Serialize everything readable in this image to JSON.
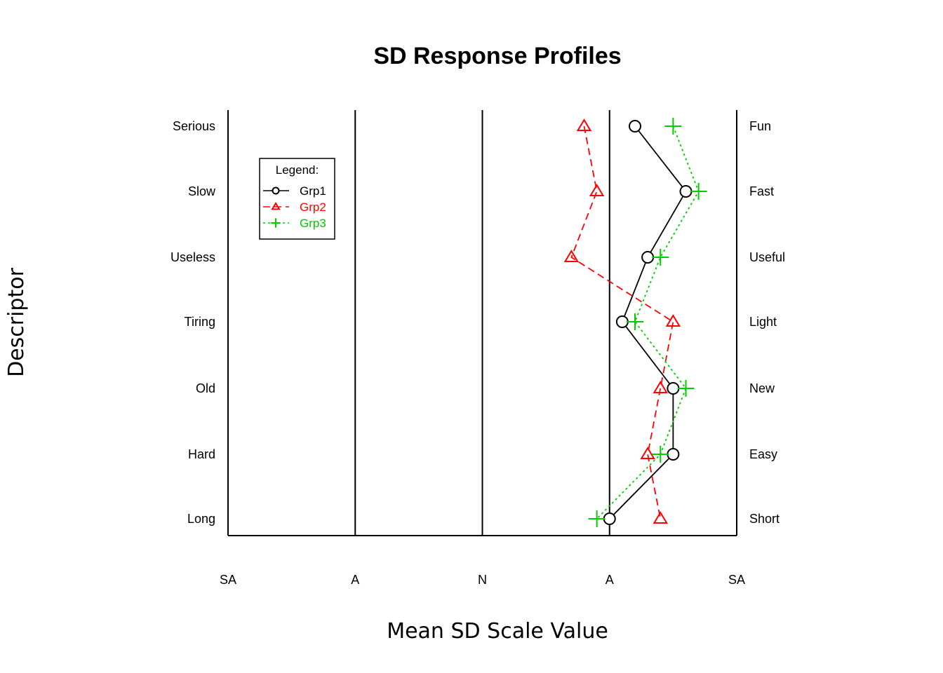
{
  "chart_data": {
    "type": "line",
    "title": "SD Response Profiles",
    "xlabel": "Mean SD Scale Value",
    "ylabel": "Descriptor",
    "x_ticks": [
      {
        "value": -2,
        "label": "SA"
      },
      {
        "value": -1,
        "label": "A"
      },
      {
        "value": 0,
        "label": "N"
      },
      {
        "value": 1,
        "label": "A"
      },
      {
        "value": 2,
        "label": "SA"
      }
    ],
    "xlim": [
      -2,
      2
    ],
    "descriptors_left": [
      "Serious",
      "Slow",
      "Useless",
      "Tiring",
      "Old",
      "Hard",
      "Long"
    ],
    "descriptors_right": [
      "Fun",
      "Fast",
      "Useful",
      "Light",
      "New",
      "Easy",
      "Short"
    ],
    "grid_x": [
      -1,
      0,
      1
    ],
    "legend": {
      "title": "Legend:",
      "position": "top-left"
    },
    "series": [
      {
        "name": "Grp1",
        "color": "#000000",
        "line": "solid",
        "marker": "circle",
        "values": [
          1.2,
          1.6,
          1.3,
          1.1,
          1.5,
          1.5,
          1.0
        ]
      },
      {
        "name": "Grp2",
        "color": "#ff0000",
        "line": "dashed",
        "marker": "triangle",
        "values": [
          0.8,
          0.9,
          0.7,
          1.5,
          1.4,
          1.3,
          1.4
        ]
      },
      {
        "name": "Grp3",
        "color": "#00cc00",
        "line": "dotted",
        "marker": "plus",
        "values": [
          1.5,
          1.7,
          1.4,
          1.2,
          1.6,
          1.4,
          0.9
        ]
      }
    ]
  }
}
